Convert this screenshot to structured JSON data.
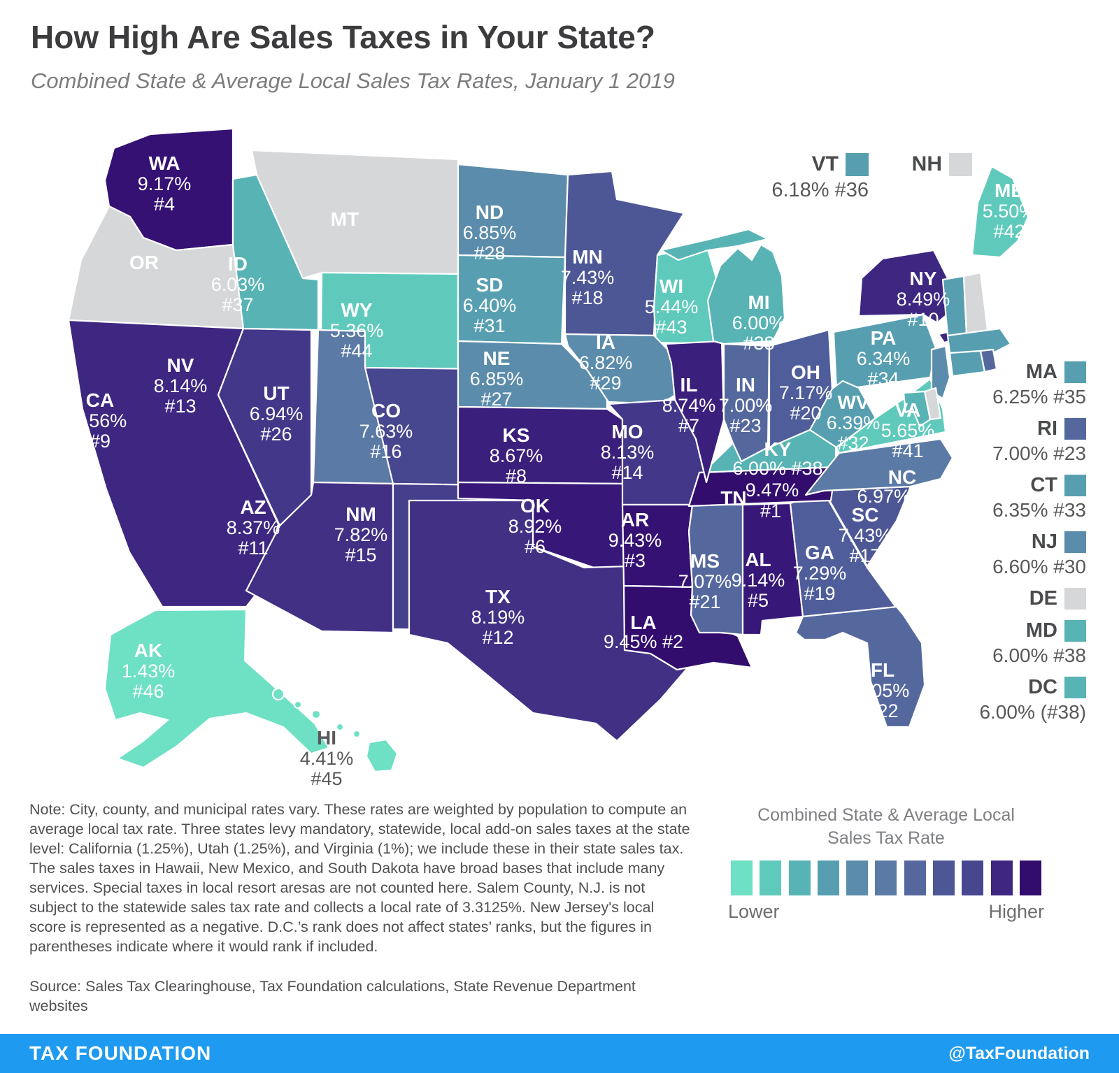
{
  "header": {
    "title": "How High Are Sales Taxes in Your State?",
    "subtitle": "Combined State & Average Local Sales Tax Rates, January 1 2019"
  },
  "map": {
    "states": {
      "WA": {
        "rate": "9.17%",
        "rank": "#4",
        "color": "#351173"
      },
      "OR": {
        "rate": null,
        "rank": null,
        "color": "#d5d7d9"
      },
      "CA": {
        "rate": "8.56%",
        "rank": "#9",
        "color": "#3d2781"
      },
      "NV": {
        "rate": "8.14%",
        "rank": "#13",
        "color": "#423788"
      },
      "ID": {
        "rate": "6.03%",
        "rank": "#37",
        "color": "#58b3b4"
      },
      "MT": {
        "rate": null,
        "rank": null,
        "color": "#d5d7d9"
      },
      "WY": {
        "rate": "5.36%",
        "rank": "#44",
        "color": "#5fcabc"
      },
      "UT": {
        "rate": "6.94%",
        "rank": "#26",
        "color": "#5b7aa5"
      },
      "CO": {
        "rate": "7.63%",
        "rank": "#16",
        "color": "#474790"
      },
      "AZ": {
        "rate": "8.37%",
        "rank": "#11",
        "color": "#413084"
      },
      "NM": {
        "rate": "7.82%",
        "rank": "#15",
        "color": "#453f8c"
      },
      "ND": {
        "rate": "6.85%",
        "rank": "#28",
        "color": "#5b8cab"
      },
      "SD": {
        "rate": "6.40%",
        "rank": "#31",
        "color": "#579fb0"
      },
      "NE": {
        "rate": "6.85%",
        "rank": "#27",
        "color": "#5b8cab"
      },
      "KS": {
        "rate": "8.67%",
        "rank": "#8",
        "color": "#3a1f7c"
      },
      "OK": {
        "rate": "8.92%",
        "rank": "#6",
        "color": "#371878"
      },
      "TX": {
        "rate": "8.19%",
        "rank": "#12",
        "color": "#413084"
      },
      "MN": {
        "rate": "7.43%",
        "rank": "#18",
        "color": "#4d5795"
      },
      "IA": {
        "rate": "6.82%",
        "rank": "#29",
        "color": "#5b8cab"
      },
      "MO": {
        "rate": "8.13%",
        "rank": "#14",
        "color": "#423788"
      },
      "AR": {
        "rate": "9.43%",
        "rank": "#3",
        "color": "#351173"
      },
      "LA": {
        "rate": "9.45%",
        "rank": "#2",
        "color": "#320d6e"
      },
      "WI": {
        "rate": "5.44%",
        "rank": "#43",
        "color": "#5fcabc"
      },
      "IL": {
        "rate": "8.74%",
        "rank": "#7",
        "color": "#3a1f7c"
      },
      "MI": {
        "rate": "6.00%",
        "rank": "#38",
        "color": "#58b3b4"
      },
      "IN": {
        "rate": "7.00%",
        "rank": "#23",
        "color": "#55689e"
      },
      "OH": {
        "rate": "7.17%",
        "rank": "#20",
        "color": "#4f5d9a"
      },
      "KY": {
        "rate": "6.00%",
        "rank": "#38",
        "color": "#58b3b4"
      },
      "TN": {
        "rate": "9.47%",
        "rank": "#1",
        "color": "#320d6e"
      },
      "MS": {
        "rate": "7.07%",
        "rank": "#21",
        "color": "#55689e"
      },
      "AL": {
        "rate": "9.14%",
        "rank": "#5",
        "color": "#371878"
      },
      "GA": {
        "rate": "7.29%",
        "rank": "#19",
        "color": "#4f5d9a"
      },
      "SC": {
        "rate": "7.43%",
        "rank": "#17",
        "color": "#4d5795"
      },
      "NC": {
        "rate": "6.97%",
        "rank": "#25",
        "color": "#5b7aa5"
      },
      "FL": {
        "rate": "7.05%",
        "rank": "#22",
        "color": "#55689e"
      },
      "VA": {
        "rate": "5.65%",
        "rank": "#41",
        "color": "#5fcabc"
      },
      "WV": {
        "rate": "6.39%",
        "rank": "#32",
        "color": "#579fb0"
      },
      "PA": {
        "rate": "6.34%",
        "rank": "#34",
        "color": "#579fb0"
      },
      "NY": {
        "rate": "8.49%",
        "rank": "#10",
        "color": "#3d2781"
      },
      "ME": {
        "rate": "5.50%",
        "rank": "#42",
        "color": "#5fcabc"
      },
      "VT": {
        "rate": "6.18%",
        "rank": "#36",
        "color": "#579fb0"
      },
      "NH": {
        "rate": null,
        "rank": null,
        "color": "#d5d7d9"
      },
      "MA": {
        "rate": "6.25%",
        "rank": "#35",
        "color": "#579fb0"
      },
      "RI": {
        "rate": "7.00%",
        "rank": "#23",
        "color": "#55689e"
      },
      "CT": {
        "rate": "6.35%",
        "rank": "#33",
        "color": "#579fb0"
      },
      "NJ": {
        "rate": "6.60%",
        "rank": "#30",
        "color": "#5b8cab"
      },
      "DE": {
        "rate": null,
        "rank": null,
        "color": "#d5d7d9"
      },
      "MD": {
        "rate": "6.00%",
        "rank": "#38",
        "color": "#58b3b4"
      },
      "DC": {
        "rate": "6.00%",
        "rank": "(#38)",
        "color": "#58b3b4"
      },
      "AK": {
        "rate": "1.43%",
        "rank": "#46",
        "color": "#6ee0c4"
      },
      "HI": {
        "rate": "4.41%",
        "rank": "#45",
        "color": "#6ee0c4"
      }
    },
    "callouts": {
      "vt_label": "VT",
      "vt_value": "6.18% #36",
      "nh_label": "NH"
    },
    "side_list": [
      {
        "abbr": "MA",
        "value": "6.25% #35"
      },
      {
        "abbr": "RI",
        "value": "7.00% #23"
      },
      {
        "abbr": "CT",
        "value": "6.35% #33"
      },
      {
        "abbr": "NJ",
        "value": "6.60% #30"
      },
      {
        "abbr": "DE",
        "value": ""
      },
      {
        "abbr": "MD",
        "value": "6.00% #38"
      },
      {
        "abbr": "DC",
        "value": "6.00% (#38)"
      }
    ]
  },
  "note": "Note: City, county, and municipal rates vary. These rates are weighted by population to compute an average local tax rate. Three states levy mandatory, statewide, local add-on sales taxes at the state level: California (1.25%), Utah (1.25%), and Virginia (1%); we include these in their state sales tax. The sales taxes in Hawaii, New Mexico, and South Dakota have broad bases that include many services. Special taxes in local resort aresas are not counted here. Salem County, N.J. is not subject to the statewide sales tax rate and collects a local rate of 3.3125%. New Jersey's local score is represented as a negative. D.C.’s rank does not affect states’ ranks, but the figures in parentheses indicate where it would rank if included.",
  "source": "Source: Sales Tax Clearinghouse, Tax Foundation calculations, State Revenue Department websites",
  "legend": {
    "title_line1": "Combined State & Average Local",
    "title_line2": "Sales Tax Rate",
    "lower": "Lower",
    "higher": "Higher",
    "colors": [
      "#6ee0c4",
      "#5fcabc",
      "#58b3b4",
      "#579fb0",
      "#5b8cab",
      "#5b7aa5",
      "#55689e",
      "#4d5795",
      "#474790",
      "#3d2781",
      "#320d6e"
    ]
  },
  "footer": {
    "brand": "TAX FOUNDATION",
    "handle": "@TaxFoundation",
    "bar_color": "#1e9af0"
  }
}
